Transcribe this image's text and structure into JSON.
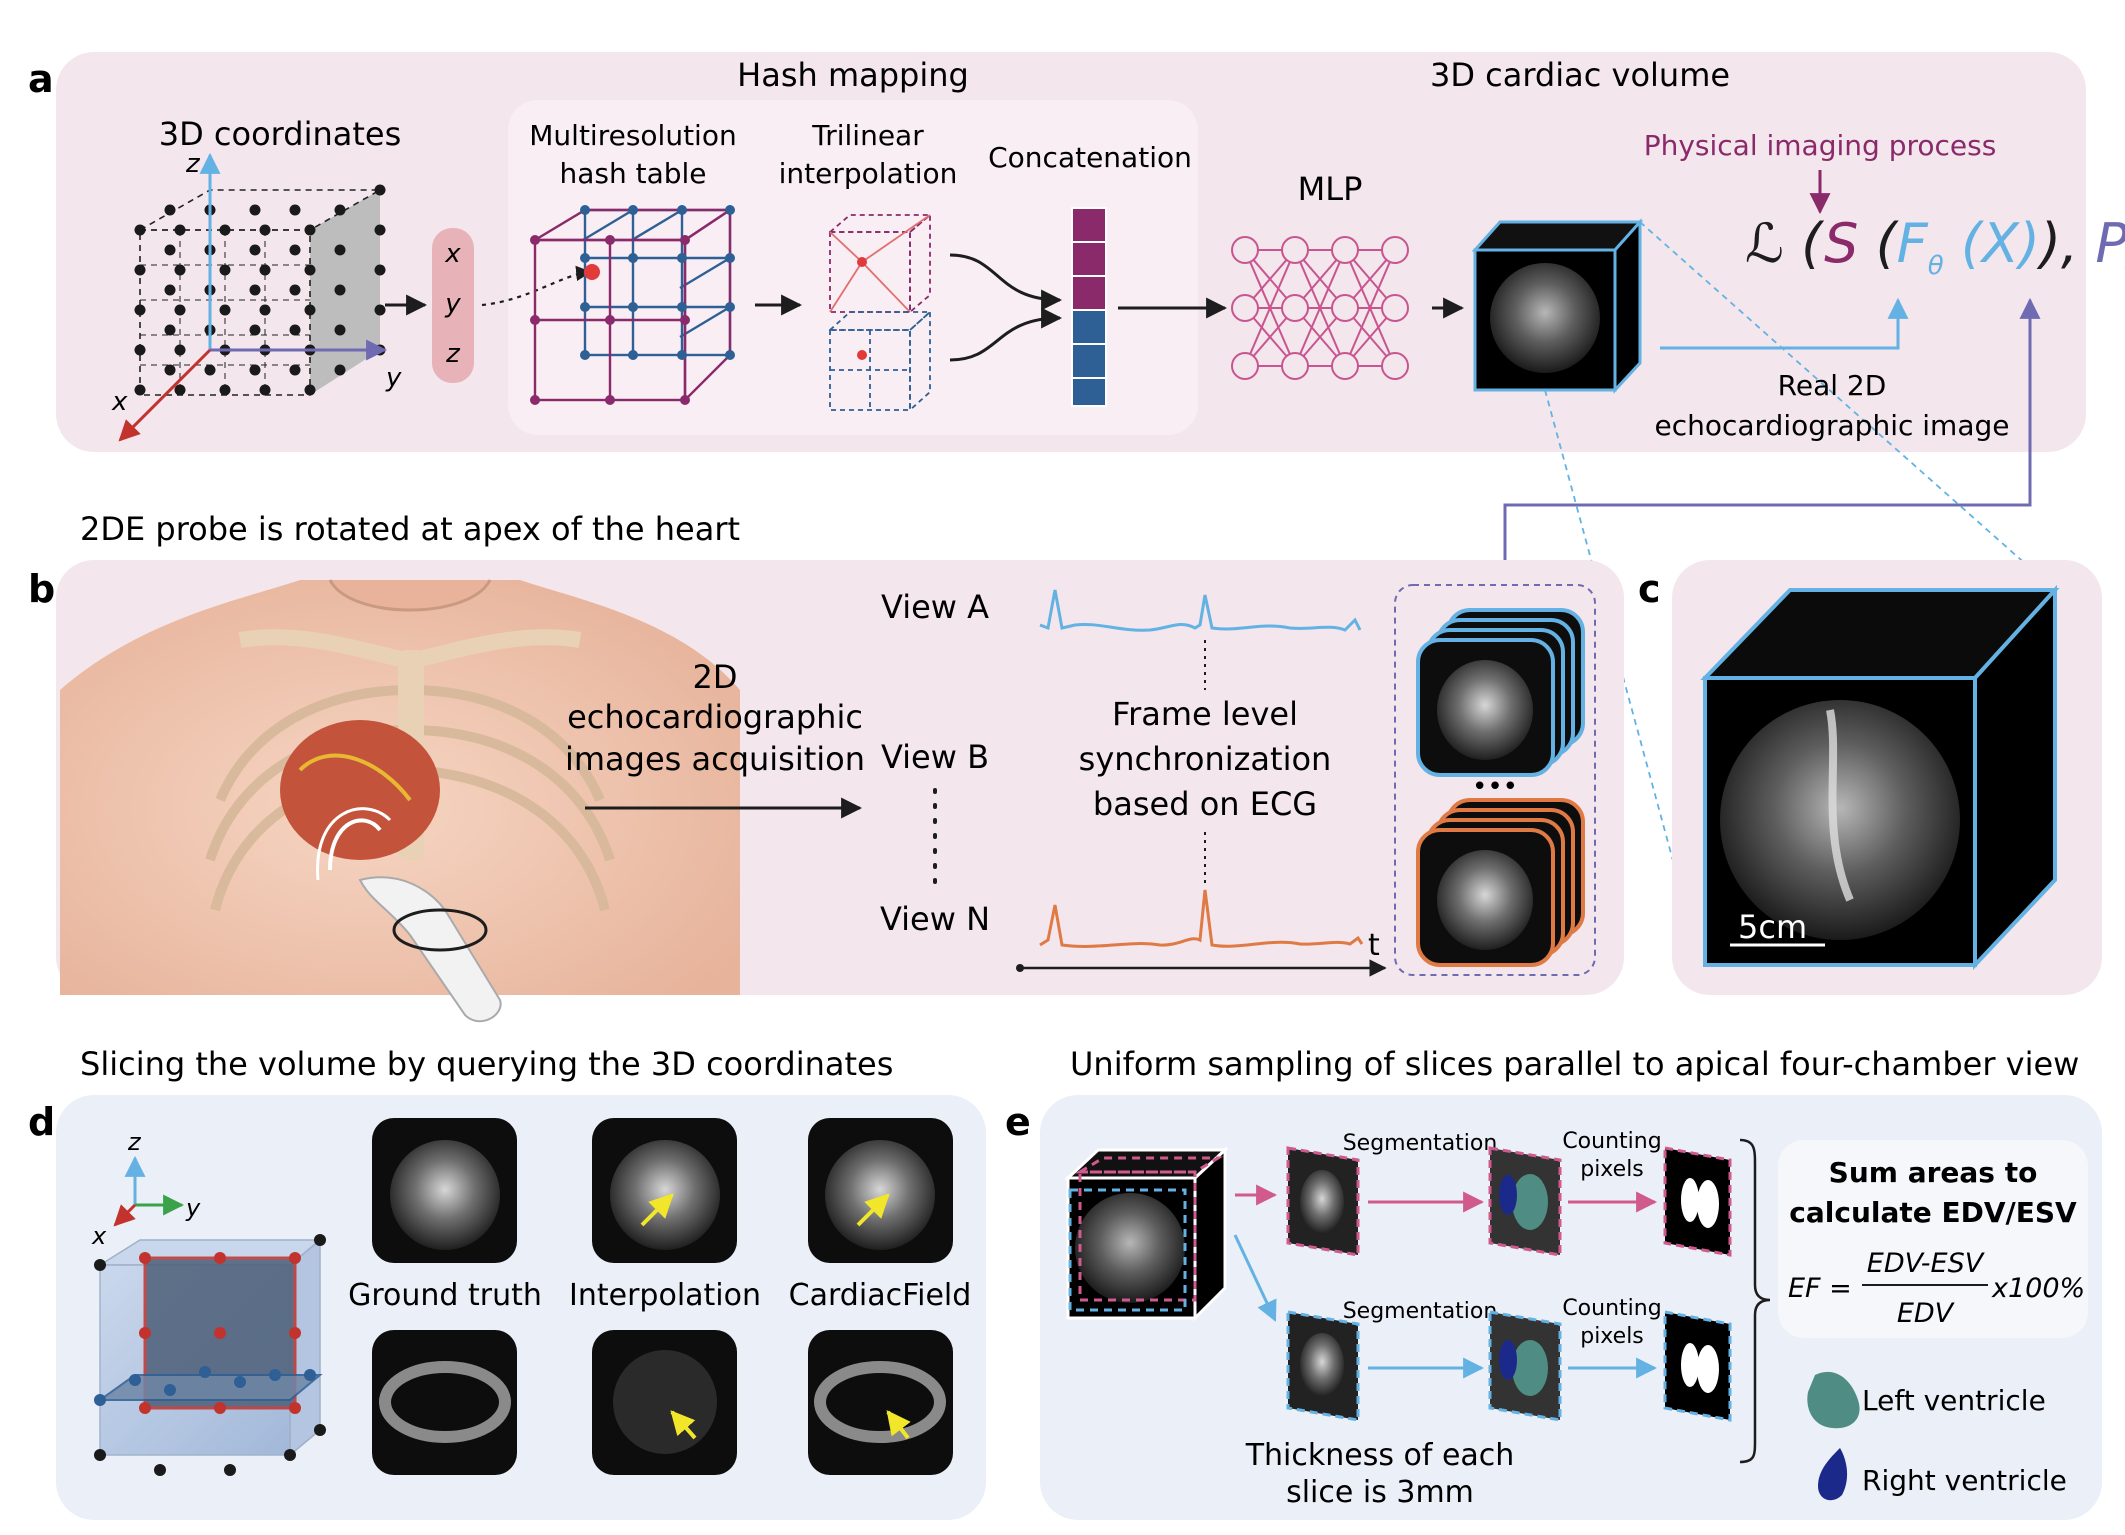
{
  "panels": {
    "a": {
      "letter": "a",
      "title_hash": "Hash mapping",
      "title_volume": "3D cardiac volume",
      "coords_label": "3D coordinates",
      "axis_x": "x",
      "axis_y": "y",
      "axis_z": "z",
      "vector": [
        "x",
        "y",
        "z"
      ],
      "multires_line1": "Multiresolution",
      "multires_line2": "hash table",
      "trilinear_line1": "Trilinear",
      "trilinear_line2": "interpolation",
      "concat": "Concatenation",
      "mlp": "MLP",
      "physical": "Physical imaging process",
      "loss_L": "ℒ",
      "loss_S": "S",
      "loss_F": "F",
      "loss_theta": "θ",
      "loss_X": "(X)",
      "loss_P": "P",
      "real_line1": "Real 2D",
      "real_line2": "echocardiographic image"
    },
    "b": {
      "letter": "b",
      "title": "2DE probe is rotated at apex of the heart",
      "acq_line1": "2D",
      "acq_line2": "echocardiographic",
      "acq_line3": "images acquisition",
      "view_a": "View A",
      "view_b": "View B",
      "view_n": "View N",
      "sync_line1": "Frame level",
      "sync_line2": "synchronization",
      "sync_line3": "based on ECG",
      "time": "t",
      "ellipsis": "•••"
    },
    "c": {
      "letter": "c",
      "scale": "5cm"
    },
    "d": {
      "letter": "d",
      "title": "Slicing the volume by querying the 3D coordinates",
      "axis_x": "x",
      "axis_y": "y",
      "axis_z": "z",
      "col_labels": [
        "Ground truth",
        "Interpolation",
        "CardiacField"
      ]
    },
    "e": {
      "letter": "e",
      "title": "Uniform sampling of slices parallel to apical four-chamber view",
      "seg": "Segmentation",
      "count_line1": "Counting",
      "count_line2": "pixels",
      "thick_line1": "Thickness of each",
      "thick_line2": "slice is 3mm",
      "sum_line1": "Sum areas to",
      "sum_line2": "calculate EDV/ESV",
      "ef_lhs": "EF =",
      "ef_num": "EDV-ESV",
      "ef_den": "EDV",
      "ef_tail": "x100%",
      "lv": "Left ventricle",
      "rv": "Right ventricle"
    }
  },
  "colors": {
    "panel_pink": "#f3e6ec",
    "panel_blue": "#ebeff7",
    "hash_purple": "#8a2a6a",
    "hash_blue": "#2e5f95",
    "mlp_pink": "#c8558f",
    "light_blue": "#63b2e3",
    "axis_red": "#c2332d",
    "axis_purple": "#6f6bb2",
    "ecg_orange": "#e07a45",
    "physical_purple": "#8a2a6a",
    "lv_teal": "#4e8c84",
    "rv_navy": "#1b2a8a"
  }
}
